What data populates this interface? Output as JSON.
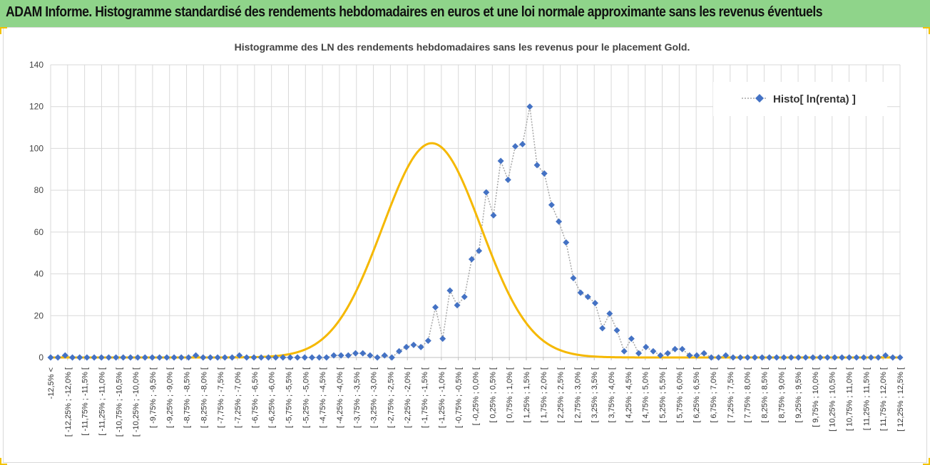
{
  "header": {
    "title": "ADAM Informe. Histogramme standardisé des rendements hebdomadaires en euros et une loi normale approximante sans les revenus éventuels"
  },
  "colors": {
    "banner": "#8fd48a",
    "series_marker": "#4472c4",
    "series_line": "#a6a6a6",
    "normal_curve": "#f5b800",
    "grid": "#d9d9d9"
  },
  "chart_data": {
    "type": "scatter",
    "title": "Histogramme des LN des rendements hebdomadaires sans les revenus pour le placement Gold.",
    "xlabel": "",
    "ylabel": "",
    "ylim": [
      0,
      140
    ],
    "yticks": [
      0,
      20,
      40,
      60,
      80,
      100,
      120,
      140
    ],
    "grid": true,
    "legend_position": "top-right",
    "categories": [
      "-12,5% <",
      "[ -12,25% ; -12,0% [",
      "[ -11,75% ; -11,5% [",
      "[ -11,25% ; -11,0% [",
      "[ -10,75% ; -10,5% [",
      "[ -10,25% ; -10,0% [",
      "[ -9,75% ; -9,5% [",
      "[ -9,25% ; -9,0% [",
      "[ -8,75% ; -8,5% [",
      "[ -8,25% ; -8,0% [",
      "[ -7,75% ; -7,5% [",
      "[ -7,25% ; -7,0% [",
      "[ -6,75% ; -6,5% [",
      "[ -6,25% ; -6,0% [",
      "[ -5,75% ; -5,5% [",
      "[ -5,25% ; -5,0% [",
      "[ -4,75% ; -4,5% [",
      "[ -4,25% ; -4,0% [",
      "[ -3,75% ; -3,5% [",
      "[ -3,25% ; -3,0% [",
      "[ -2,75% ; -2,5% [",
      "[ -2,25% ; -2,0% [",
      "[ -1,75% ; -1,5% [",
      "[ -1,25% ; -1,0% [",
      "[ -0,75% ; -0,5% [",
      "[ -0,25% ; 0,0% [",
      "[ 0,25% ; 0,5% [",
      "[ 0,75% ; 1,0% [",
      "[ 1,25% ; 1,5% [",
      "[ 1,75% ; 2,0% [",
      "[ 2,25% ; 2,5% [",
      "[ 2,75% ; 3,0% [",
      "[ 3,25% ; 3,5% [",
      "[ 3,75% ; 4,0% [",
      "[ 4,25% ; 4,5% [",
      "[ 4,75% ; 5,0% [",
      "[ 5,25% ; 5,5% [",
      "[ 5,75% ; 6,0% [",
      "[ 6,25% ; 6,5% [",
      "[ 6,75% ; 7,0% [",
      "[ 7,25% ; 7,5% [",
      "[ 7,75% ; 8,0% [",
      "[ 8,25% ; 8,5% [",
      "[ 8,75% ; 9,0% [",
      "[ 9,25% ; 9,5% [",
      "[ 9,75% ; 10,0% [",
      "[ 10,25% ; 10,5% [",
      "[ 10,75% ; 11,0% [",
      "[ 11,25% ; 11,5% [",
      "[ 11,75% ; 12,0% [",
      "[ 12,25% ; 12,5% ["
    ],
    "series": [
      {
        "name": "Histo[ ln(renta) ]",
        "style": "dotted-line-diamond-markers",
        "values": [
          0,
          0,
          1,
          0,
          0,
          0,
          0,
          0,
          0,
          0,
          0,
          0,
          0,
          0,
          0,
          0,
          0,
          0,
          0,
          0,
          1,
          0,
          0,
          0,
          0,
          0,
          1,
          0,
          0,
          0,
          0,
          0,
          0,
          0,
          0,
          0,
          0,
          0,
          0,
          1,
          1,
          1,
          2,
          2,
          1,
          0,
          1,
          0,
          3,
          5,
          6,
          5,
          8,
          24,
          9,
          32,
          25,
          29,
          47,
          51,
          79,
          68,
          94,
          85,
          101,
          102,
          120,
          92,
          88,
          73,
          65,
          55,
          38,
          31,
          29,
          26,
          14,
          21,
          13,
          3,
          9,
          2,
          5,
          3,
          1,
          2,
          4,
          4,
          1,
          1,
          2,
          0,
          0,
          1,
          0,
          0,
          0,
          0,
          0,
          0,
          0,
          0,
          0,
          0,
          0,
          0,
          0,
          0,
          0,
          0,
          0,
          0,
          0,
          0,
          0,
          1,
          0,
          0
        ]
      },
      {
        "name": "",
        "style": "smooth-line",
        "mean_index": 52.5,
        "sd_index": 6.8,
        "peak": 102.5
      }
    ]
  }
}
